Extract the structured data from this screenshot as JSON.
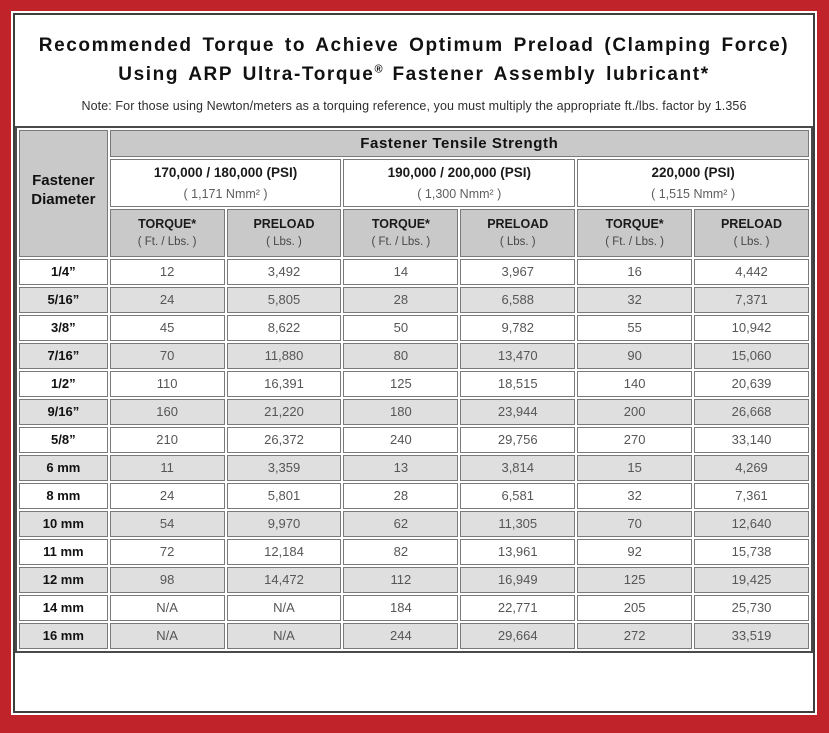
{
  "colors": {
    "frame_red": "#c1232b",
    "panel_border": "#3f3f3f",
    "header_gray": "#c9c9c9",
    "row_alt_gray": "#dfdfdf",
    "cell_border": "#7a7a7a",
    "value_text": "#565656"
  },
  "title": {
    "line1": "Recommended Torque to Achieve Optimum Preload (Clamping Force)",
    "line2_pre": "Using ARP Ultra-Torque",
    "line2_sup": "®",
    "line2_post": " Fastener Assembly lubricant*",
    "note": "Note: For those using Newton/meters as a torquing reference, you must multiply the appropriate ft./lbs. factor by 1.356"
  },
  "table": {
    "corner_header_line1": "Fastener",
    "corner_header_line2": "Diameter",
    "tensile_header": "Fastener Tensile Strength",
    "strength_groups": [
      {
        "psi": "170,000 / 180,000 (PSI)",
        "nmm": "( 1,171 Nmm² )"
      },
      {
        "psi": "190,000 / 200,000 (PSI)",
        "nmm": "( 1,300 Nmm² )"
      },
      {
        "psi": "220,000 (PSI)",
        "nmm": "( 1,515 Nmm² )"
      }
    ],
    "sub_headers": {
      "torque_label": "TORQUE*",
      "torque_sub": "( Ft. / Lbs. )",
      "preload_label": "PRELOAD",
      "preload_sub": "( Lbs. )"
    },
    "rows": [
      {
        "dia": "1/4”",
        "values": [
          "12",
          "3,492",
          "14",
          "3,967",
          "16",
          "4,442"
        ]
      },
      {
        "dia": "5/16”",
        "values": [
          "24",
          "5,805",
          "28",
          "6,588",
          "32",
          "7,371"
        ]
      },
      {
        "dia": "3/8”",
        "values": [
          "45",
          "8,622",
          "50",
          "9,782",
          "55",
          "10,942"
        ]
      },
      {
        "dia": "7/16”",
        "values": [
          "70",
          "11,880",
          "80",
          "13,470",
          "90",
          "15,060"
        ]
      },
      {
        "dia": "1/2”",
        "values": [
          "110",
          "16,391",
          "125",
          "18,515",
          "140",
          "20,639"
        ]
      },
      {
        "dia": "9/16”",
        "values": [
          "160",
          "21,220",
          "180",
          "23,944",
          "200",
          "26,668"
        ]
      },
      {
        "dia": "5/8”",
        "values": [
          "210",
          "26,372",
          "240",
          "29,756",
          "270",
          "33,140"
        ]
      },
      {
        "dia": "6 mm",
        "values": [
          "11",
          "3,359",
          "13",
          "3,814",
          "15",
          "4,269"
        ]
      },
      {
        "dia": "8 mm",
        "values": [
          "24",
          "5,801",
          "28",
          "6,581",
          "32",
          "7,361"
        ]
      },
      {
        "dia": "10 mm",
        "values": [
          "54",
          "9,970",
          "62",
          "11,305",
          "70",
          "12,640"
        ]
      },
      {
        "dia": "11 mm",
        "values": [
          "72",
          "12,184",
          "82",
          "13,961",
          "92",
          "15,738"
        ]
      },
      {
        "dia": "12 mm",
        "values": [
          "98",
          "14,472",
          "112",
          "16,949",
          "125",
          "19,425"
        ]
      },
      {
        "dia": "14 mm",
        "values": [
          "N/A",
          "N/A",
          "184",
          "22,771",
          "205",
          "25,730"
        ]
      },
      {
        "dia": "16 mm",
        "values": [
          "N/A",
          "N/A",
          "244",
          "29,664",
          "272",
          "33,519"
        ]
      }
    ]
  }
}
